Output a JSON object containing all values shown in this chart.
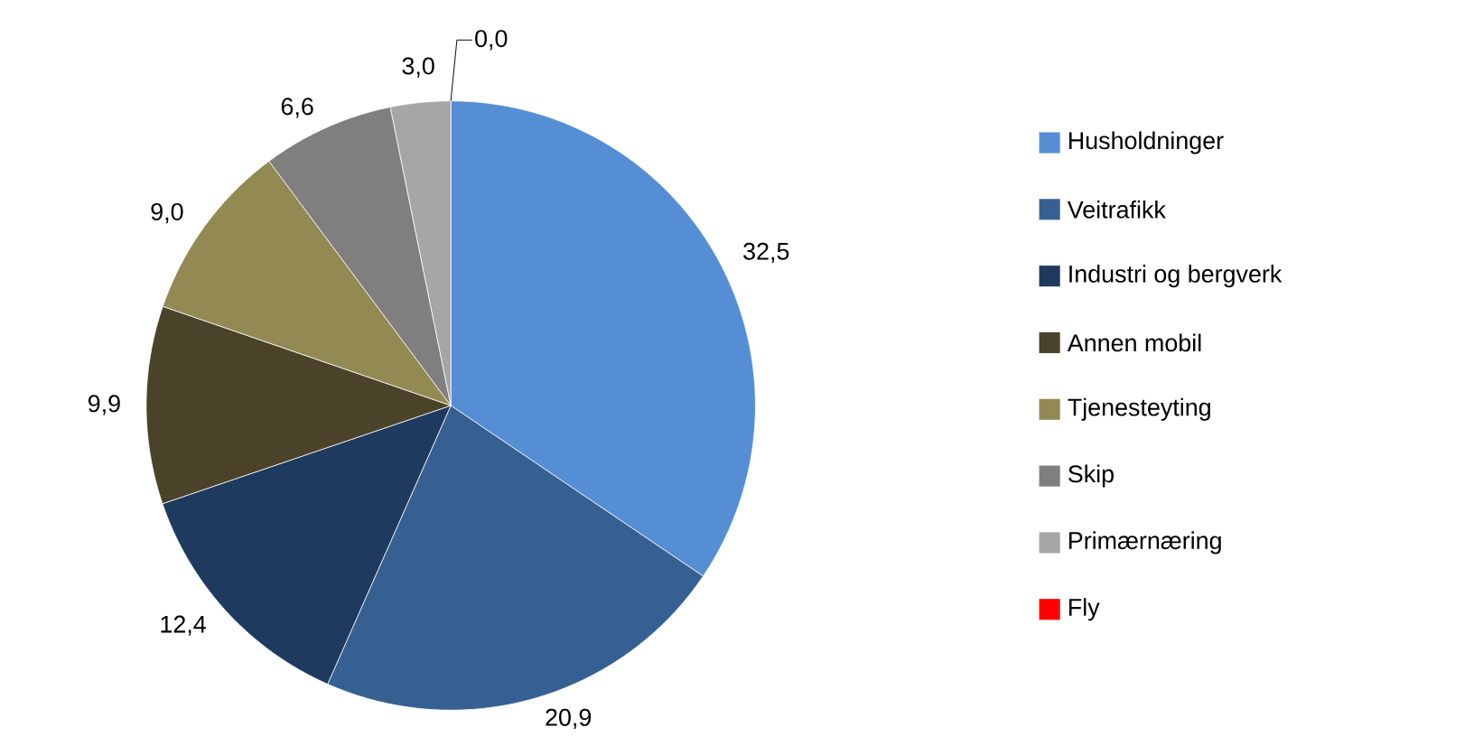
{
  "chart_data": {
    "type": "pie",
    "categories": [
      "Husholdninger",
      "Veitrafikk",
      "Industri og bergverk",
      "Annen mobil",
      "Tjenesteyting",
      "Skip",
      "Primærnæring",
      "Fly"
    ],
    "values": [
      32.5,
      20.9,
      12.4,
      9.9,
      9.0,
      6.6,
      3.0,
      0.0
    ],
    "value_labels": [
      "32,5",
      "20,9",
      "12,4",
      "9,9",
      "9,0",
      "6,6",
      "3,0",
      "0,0"
    ],
    "colors": [
      "#558ed5",
      "#376092",
      "#1f3a5f",
      "#4a4229",
      "#938953",
      "#7f7f7f",
      "#a6a6a6",
      "#ff0000"
    ],
    "legend": "right"
  }
}
